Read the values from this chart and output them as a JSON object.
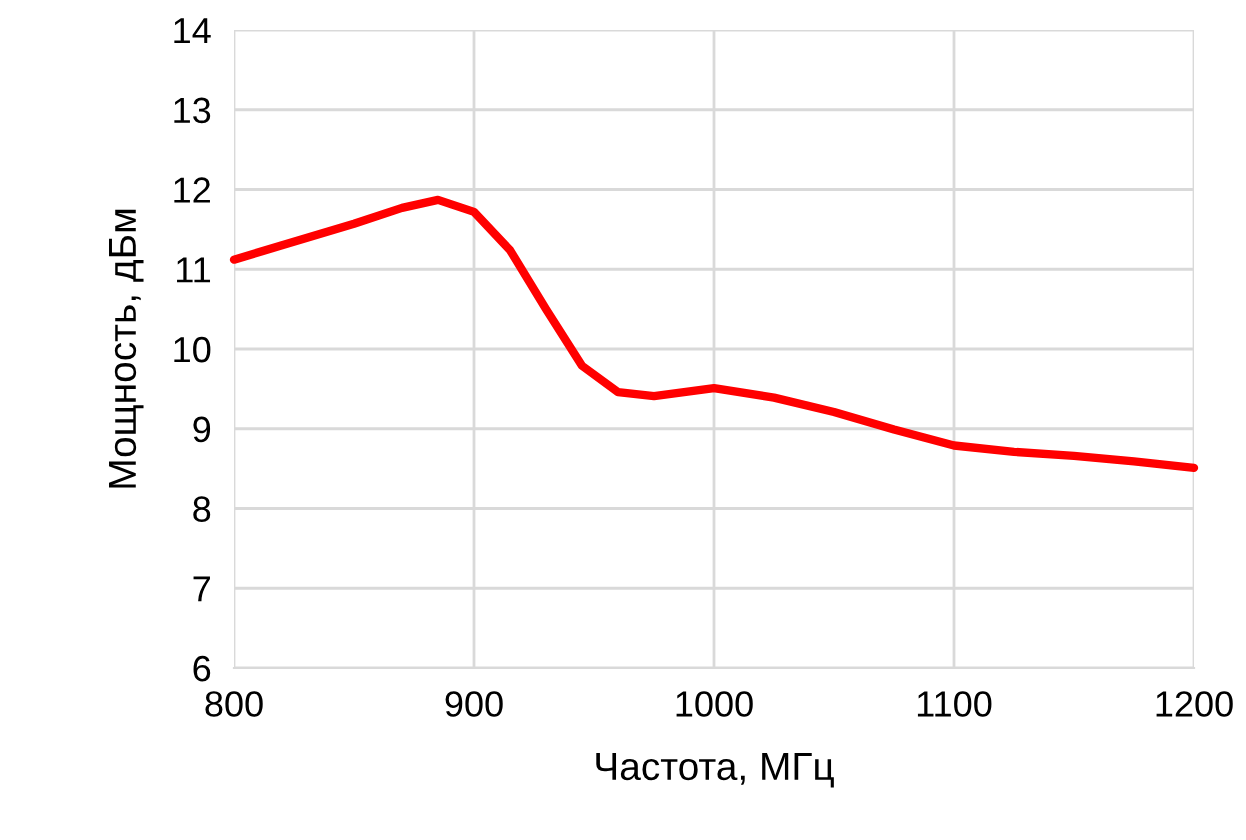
{
  "chart_data": {
    "type": "line",
    "xlabel": "Частота, МГц",
    "ylabel": "Мощность, дБм",
    "x": [
      800,
      820,
      850,
      870,
      885,
      900,
      915,
      930,
      945,
      960,
      975,
      1000,
      1025,
      1050,
      1075,
      1100,
      1125,
      1150,
      1175,
      1200
    ],
    "series": [
      {
        "color": "#ff0000",
        "values": [
          11.12,
          11.3,
          11.57,
          11.77,
          11.87,
          11.72,
          11.24,
          10.5,
          9.79,
          9.46,
          9.41,
          9.51,
          9.39,
          9.21,
          8.99,
          8.79,
          8.71,
          8.66,
          8.59,
          8.51
        ]
      }
    ],
    "xlim": [
      800,
      1200
    ],
    "xticks": [
      800,
      900,
      1000,
      1100,
      1200
    ],
    "ylim": [
      6,
      14
    ],
    "yticks": [
      6,
      7,
      8,
      9,
      10,
      11,
      12,
      13,
      14
    ],
    "grid": true,
    "marker": "none",
    "line_style": "solid"
  }
}
